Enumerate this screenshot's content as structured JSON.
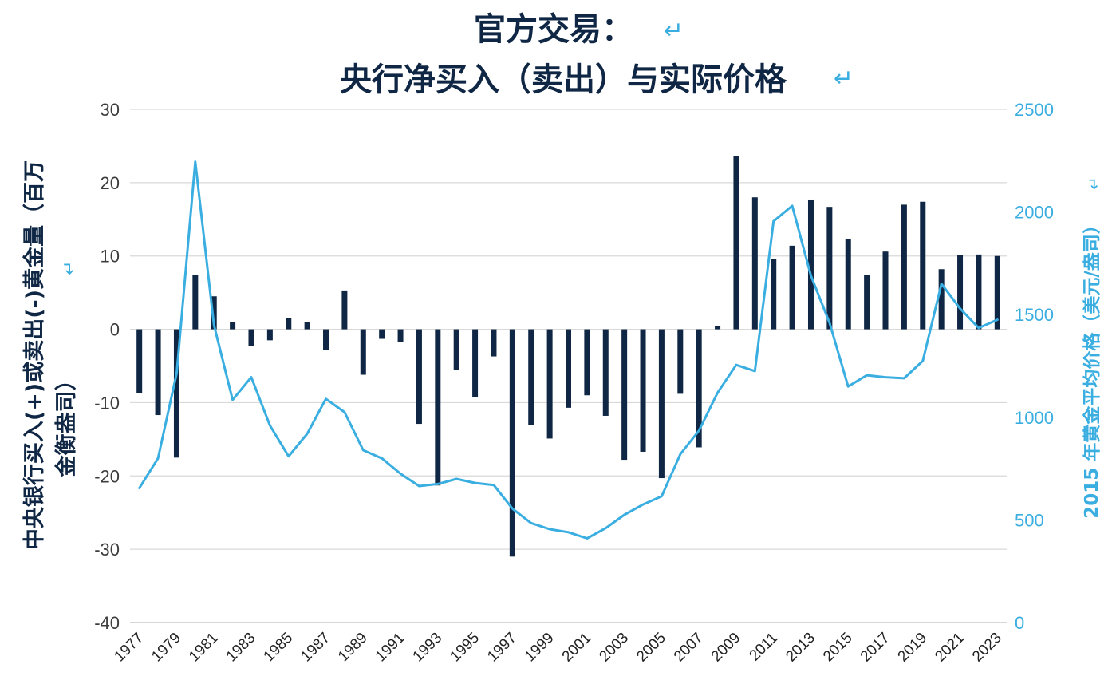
{
  "chart_data": {
    "type": "bar+line",
    "title": [
      "官方交易：",
      "央行净买入（卖出）与实际价格"
    ],
    "title_return_marks": [
      "↵",
      "↵"
    ],
    "ylabel_left": [
      "中央银行买入(+)或卖出(-)黄金量（百万",
      "金衡盎司）"
    ],
    "ylabel_left_mark": "↵",
    "ylabel_right": "2015 年黄金平均价格（美元/盎司）",
    "ylabel_right_mark": "↵",
    "ylim_left": [
      -40,
      30
    ],
    "ylim_right": [
      0,
      2500
    ],
    "yticks_left": [
      "30",
      "20",
      "10",
      "0",
      "-10",
      "-20",
      "-30",
      "-40"
    ],
    "yticks_right": [
      "2500",
      "2000",
      "1500",
      "1000",
      "500",
      "0"
    ],
    "xtick_labels": [
      "1977",
      "1979",
      "1981",
      "1983",
      "1985",
      "1987",
      "1989",
      "1991",
      "1993",
      "1995",
      "1997",
      "1999",
      "2001",
      "2003",
      "2005",
      "2007",
      "2009",
      "2011",
      "2013",
      "2015",
      "2017",
      "2019",
      "2021",
      "2023"
    ],
    "grid": "horizontal",
    "colors": {
      "bars": "#0f2744",
      "line": "#3aaee0",
      "title": "#0f2744",
      "grid": "#d9d9d9"
    },
    "x": [
      1977,
      1978,
      1979,
      1980,
      1981,
      1982,
      1983,
      1984,
      1985,
      1986,
      1987,
      1988,
      1989,
      1990,
      1991,
      1992,
      1993,
      1994,
      1995,
      1996,
      1997,
      1998,
      1999,
      2000,
      2001,
      2002,
      2003,
      2004,
      2005,
      2006,
      2007,
      2008,
      2009,
      2010,
      2011,
      2012,
      2013,
      2014,
      2015,
      2016,
      2017,
      2018,
      2019,
      2020,
      2021,
      2022,
      2023
    ],
    "series": [
      {
        "kind": "bar",
        "axis": "left",
        "values": [
          -8.7,
          -11.7,
          -17.5,
          7.4,
          4.5,
          1.0,
          -2.3,
          -1.5,
          1.5,
          1.0,
          -2.8,
          5.3,
          -6.2,
          -1.3,
          -1.7,
          -12.9,
          -21.3,
          -5.5,
          -9.2,
          -3.7,
          -31.0,
          -13.1,
          -14.9,
          -10.7,
          -9.0,
          -11.8,
          -17.8,
          -16.7,
          -20.3,
          -8.8,
          -16.1,
          0.5,
          23.6,
          18.0,
          9.6,
          11.4,
          17.7,
          16.7,
          12.3,
          7.4,
          10.6,
          17.0,
          17.4,
          8.2,
          10.1,
          10.2,
          10.0
        ]
      },
      {
        "kind": "line",
        "axis": "right",
        "values": [
          655,
          800,
          1215,
          2245,
          1450,
          1085,
          1195,
          960,
          810,
          920,
          1090,
          1025,
          840,
          800,
          725,
          665,
          675,
          700,
          680,
          670,
          555,
          485,
          455,
          440,
          410,
          460,
          525,
          575,
          615,
          820,
          935,
          1120,
          1255,
          1225,
          1955,
          2030,
          1690,
          1460,
          1150,
          1205,
          1195,
          1190,
          1275,
          1650,
          1530,
          1435,
          1475
        ]
      }
    ]
  }
}
